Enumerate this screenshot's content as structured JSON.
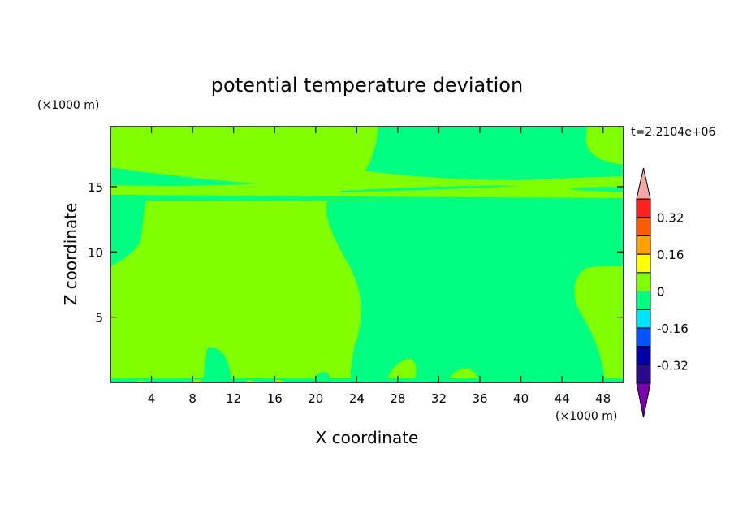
{
  "chart_data": {
    "type": "heatmap",
    "subtype": "filled-contour",
    "title": "potential temperature deviation",
    "xlabel": "X coordinate",
    "ylabel": "Z coordinate",
    "x_unit": "(×1000 m)",
    "y_unit": "(×1000 m)",
    "time_label": "t=2.2104e+06",
    "xlim": [
      0,
      50
    ],
    "ylim": [
      0,
      19.6
    ],
    "xticks": [
      4,
      8,
      12,
      16,
      20,
      24,
      28,
      32,
      36,
      40,
      44,
      48
    ],
    "yticks": [
      5,
      10,
      15
    ],
    "colorbar": {
      "levels": [
        -0.4,
        -0.32,
        -0.24,
        -0.16,
        -0.08,
        0,
        0.08,
        0.16,
        0.24,
        0.32,
        0.4
      ],
      "labels": [
        "0.32",
        "0.16",
        "0",
        "-0.16",
        "-0.32"
      ],
      "label_values": [
        0.32,
        0.16,
        0,
        -0.16,
        -0.32
      ],
      "colors": [
        "#2a0a8c",
        "#0000a8",
        "#0055ff",
        "#00e5ff",
        "#00ff80",
        "#80ff00",
        "#ffff00",
        "#ffa000",
        "#ff5a00",
        "#ff2020"
      ],
      "under_color": "#7a00b0",
      "over_color": "#f4a8a8",
      "extend": "both"
    },
    "regions": {
      "positive_small": {
        "range": [
          0,
          0.08
        ],
        "color": "#80ff00"
      },
      "negative_small": {
        "range": [
          -0.08,
          0
        ],
        "color": "#00ff80"
      }
    }
  }
}
